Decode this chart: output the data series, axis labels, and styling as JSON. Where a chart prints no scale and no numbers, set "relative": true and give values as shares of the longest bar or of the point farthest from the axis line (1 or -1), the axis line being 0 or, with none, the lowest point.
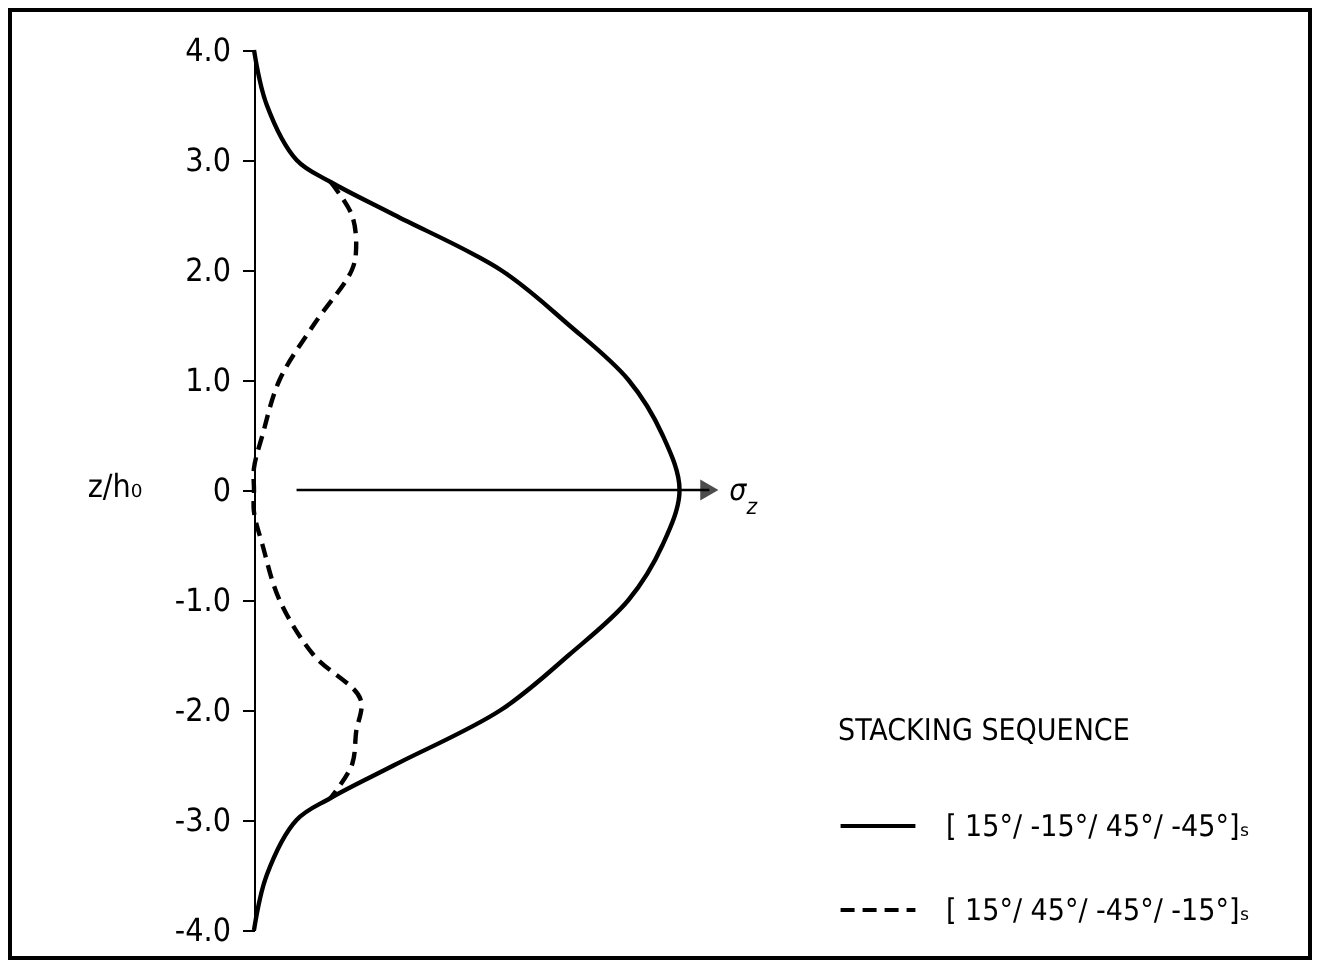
{
  "chart_data": {
    "type": "line",
    "orientation": "horizontal",
    "relative": true,
    "xlabel": "σ$_{z}$",
    "ylabel": "z/h₀",
    "legend_title": "STACKING SEQUENCE",
    "legend": "bottom right",
    "ylim": [
      -4,
      4
    ],
    "yticks": [
      {
        "value": 4,
        "label": "4.0"
      },
      {
        "value": 3,
        "label": "3.0"
      },
      {
        "value": 2,
        "label": "2.0"
      },
      {
        "value": 1,
        "label": "1.0"
      },
      0,
      {
        "value": -1,
        "label": "-1.0"
      },
      {
        "value": -2,
        "label": "-2.0"
      },
      {
        "value": -3,
        "label": "-3.0"
      },
      {
        "value": -4,
        "label": "-4.0"
      }
    ],
    "marker": "none",
    "series": [
      {
        "name": "[ 15°/ -15°/ 45°/ -45°]ₛ",
        "color": "#000000",
        "line_style": "solid",
        "x": [
          4,
          3.5,
          3,
          2.8,
          2.5,
          2,
          1.5,
          1,
          0.5,
          0,
          -0.5,
          -1,
          -1.5,
          -2,
          -2.5,
          -2.8,
          -3,
          -3.5,
          -4
        ],
        "values": [
          0,
          0.03,
          0.1,
          0.18,
          0.33,
          0.58,
          0.74,
          0.88,
          0.96,
          1,
          0.96,
          0.88,
          0.74,
          0.58,
          0.33,
          0.18,
          0.1,
          0.03,
          0
        ]
      },
      {
        "name": "[ 15°/ 45°/ -45°/ -15°]ₛ",
        "color": "#000000",
        "line_style": "dashed",
        "x": [
          2.8,
          2.5,
          2.2,
          2,
          1.5,
          1,
          0.5,
          0.2,
          0,
          -0.2,
          -0.5,
          -1,
          -1.5,
          -1.9,
          -2.2,
          -2.5,
          -2.8
        ],
        "values": [
          0.18,
          0.23,
          0.24,
          0.23,
          0.14,
          0.06,
          0.02,
          0,
          0,
          0,
          0.02,
          0.06,
          0.14,
          0.25,
          0.24,
          0.23,
          0.18
        ]
      }
    ]
  }
}
